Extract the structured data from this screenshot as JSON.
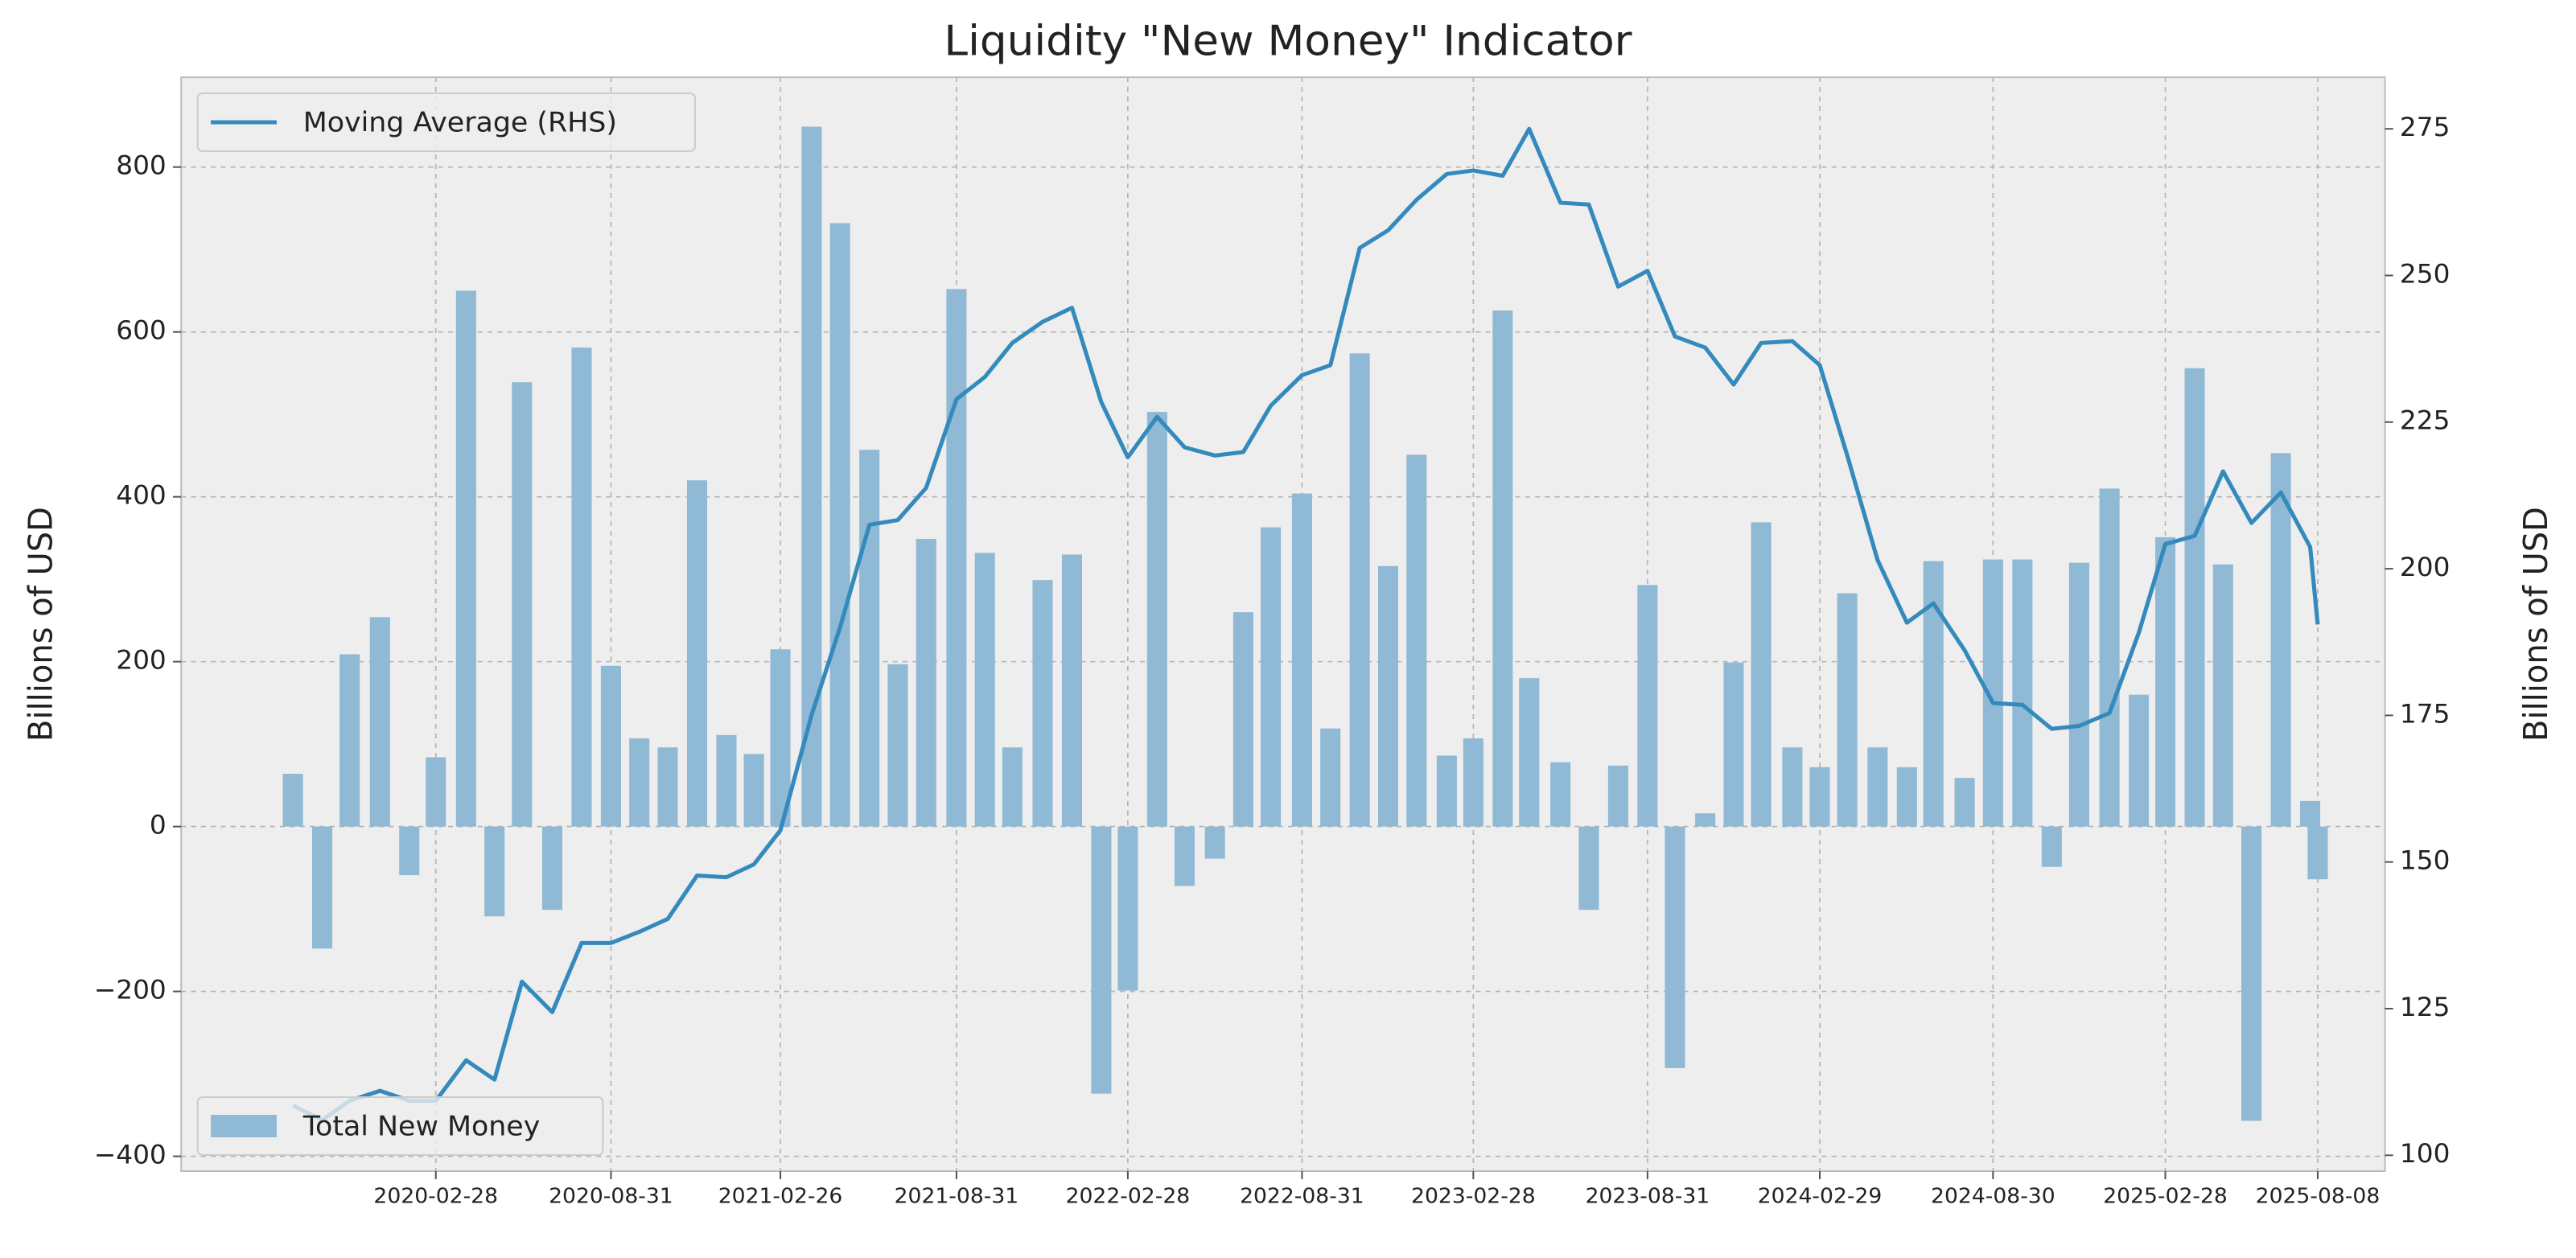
{
  "chart_data": {
    "type": "combo",
    "title": "Liquidity \"New Money\" Indicator",
    "y_label": "Billions of USD",
    "y2_label": "Billions of USD",
    "x": [
      "2019-09-30",
      "2019-10-31",
      "2019-11-29",
      "2019-12-31",
      "2020-01-31",
      "2020-02-28",
      "2020-03-31",
      "2020-04-30",
      "2020-05-29",
      "2020-06-30",
      "2020-07-31",
      "2020-08-31",
      "2020-09-30",
      "2020-10-30",
      "2020-11-30",
      "2020-12-31",
      "2021-01-29",
      "2021-02-26",
      "2021-03-31",
      "2021-04-30",
      "2021-05-31",
      "2021-06-30",
      "2021-07-30",
      "2021-08-31",
      "2021-09-30",
      "2021-10-29",
      "2021-11-30",
      "2021-12-31",
      "2022-01-31",
      "2022-02-28",
      "2022-03-31",
      "2022-04-29",
      "2022-05-31",
      "2022-06-30",
      "2022-07-29",
      "2022-08-31",
      "2022-09-30",
      "2022-10-31",
      "2022-11-30",
      "2022-12-30",
      "2023-01-31",
      "2023-02-28",
      "2023-03-31",
      "2023-04-28",
      "2023-05-31",
      "2023-06-30",
      "2023-07-31",
      "2023-08-31",
      "2023-09-29",
      "2023-10-31",
      "2023-11-30",
      "2023-12-29",
      "2024-01-31",
      "2024-02-29",
      "2024-03-29",
      "2024-04-30",
      "2024-05-31",
      "2024-06-28",
      "2024-07-31",
      "2024-08-30",
      "2024-09-30",
      "2024-10-31",
      "2024-11-29",
      "2024-12-31",
      "2025-01-31",
      "2025-02-28",
      "2025-03-31",
      "2025-04-30",
      "2025-05-30",
      "2025-06-30",
      "2025-07-31",
      "2025-08-08"
    ],
    "series": [
      {
        "name": "Total New Money",
        "type": "bar",
        "color": "#8fb9d4",
        "axis": "y",
        "legend": "lower left",
        "values": [
          64,
          -148,
          209,
          254,
          -59,
          84,
          650,
          -109,
          539,
          -101,
          581,
          195,
          107,
          96,
          420,
          111,
          88,
          215,
          849,
          732,
          457,
          197,
          349,
          652,
          332,
          96,
          299,
          330,
          -324,
          -199,
          503,
          -72,
          -39,
          260,
          363,
          404,
          119,
          574,
          316,
          451,
          86,
          107,
          626,
          180,
          78,
          -101,
          74,
          293,
          -293,
          16,
          199,
          369,
          96,
          72,
          283,
          96,
          72,
          322,
          59,
          324,
          324,
          -49,
          320,
          410,
          160,
          351,
          556,
          318,
          -357,
          453,
          31,
          -64
        ]
      },
      {
        "name": "Moving Average (RHS)",
        "type": "line",
        "color": "#348abd",
        "axis": "y2",
        "legend": "upper left",
        "values": [
          108.5,
          106,
          109.3,
          111,
          109.3,
          109.3,
          116.2,
          112.9,
          129.6,
          124.4,
          136.2,
          136.2,
          138.1,
          140.3,
          147.7,
          147.4,
          149.6,
          155.4,
          175.1,
          190,
          207.5,
          208.3,
          213.8,
          228.9,
          232.7,
          238.5,
          242.1,
          244.5,
          228.4,
          219,
          225.9,
          220.7,
          219.3,
          219.9,
          227.8,
          233,
          234.7,
          254.7,
          257.7,
          262.9,
          267.3,
          267.9,
          267,
          275,
          262.4,
          262.1,
          248.1,
          250.8,
          239.6,
          237.7,
          231.4,
          238.5,
          238.8,
          234.7,
          219.3,
          201.5,
          190.8,
          194.1,
          186.1,
          177.1,
          176.8,
          172.7,
          173.2,
          175.4,
          189.1,
          204.2,
          205.6,
          216.6,
          207.8,
          213,
          203.7,
          190.5
        ]
      }
    ],
    "xlim": [
      "2019-06-04",
      "2025-10-18"
    ],
    "xticks": [
      "2020-02-28",
      "2020-08-31",
      "2021-02-26",
      "2021-08-31",
      "2022-02-28",
      "2022-08-31",
      "2023-02-28",
      "2023-08-31",
      "2024-02-29",
      "2024-08-30",
      "2025-02-28",
      "2025-08-08"
    ],
    "ylim": [
      -418,
      909
    ],
    "yticks": [
      {
        "value": -400,
        "label": "−400"
      },
      {
        "value": -200,
        "label": "−200"
      },
      0,
      200,
      400,
      600,
      800
    ],
    "y2lim": [
      97.3,
      283.8
    ],
    "y2ticks": [
      100,
      125,
      150,
      175,
      200,
      225,
      250,
      275
    ],
    "grid": true
  }
}
